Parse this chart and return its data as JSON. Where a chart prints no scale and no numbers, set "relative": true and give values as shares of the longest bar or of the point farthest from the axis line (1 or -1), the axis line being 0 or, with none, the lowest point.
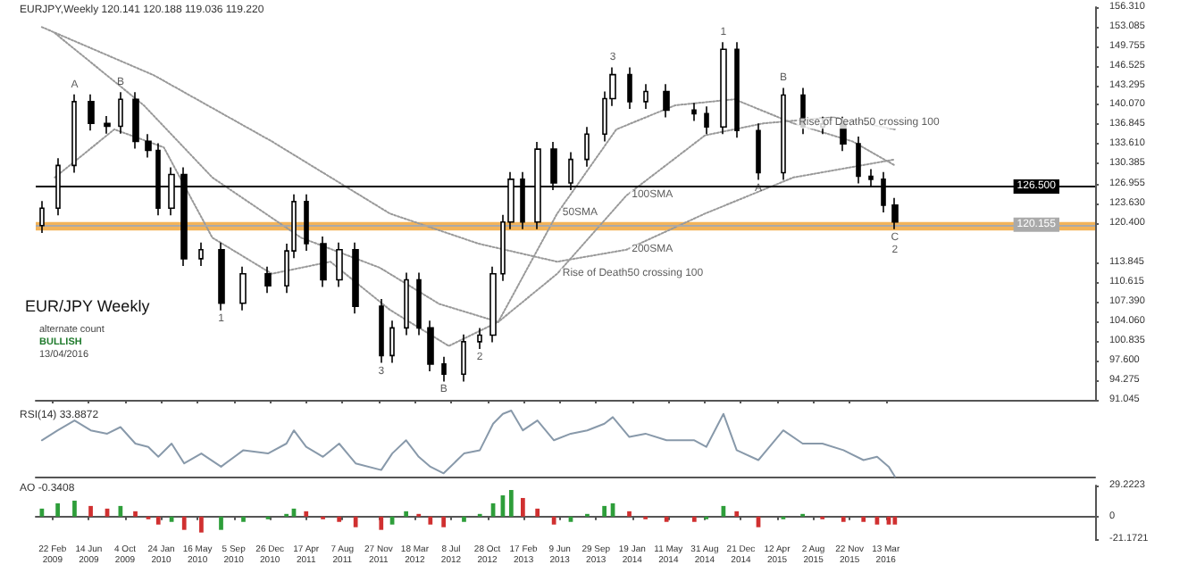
{
  "chart_data": [
    {
      "type": "candlestick",
      "title": "EURJPY,Weekly 120.141 120.188 119.036 119.220",
      "x": [
        "2009-01-20",
        "2009-03-10",
        "2009-05-01",
        "2009-06-20",
        "2009-08-10",
        "2009-09-20",
        "2009-11-05",
        "2009-12-15",
        "2010-01-15",
        "2010-02-25",
        "2010-04-05",
        "2010-05-28",
        "2010-07-28",
        "2010-10-05",
        "2010-12-20",
        "2011-02-15",
        "2011-03-10",
        "2011-04-17",
        "2011-06-08",
        "2011-07-28",
        "2011-09-17",
        "2011-12-05",
        "2012-01-08",
        "2012-02-20",
        "2012-03-30",
        "2012-05-05",
        "2012-06-15",
        "2012-08-17",
        "2012-10-05",
        "2012-11-15",
        "2012-12-15",
        "2013-01-10",
        "2013-02-15",
        "2013-04-01",
        "2013-05-22",
        "2013-07-13",
        "2013-09-02",
        "2013-10-25",
        "2013-11-20",
        "2014-01-10",
        "2014-03-01",
        "2014-05-05",
        "2014-07-30",
        "2014-09-05",
        "2014-10-28",
        "2014-12-08",
        "2015-02-13",
        "2015-05-01",
        "2015-06-30",
        "2015-08-30",
        "2015-11-03",
        "2015-12-20",
        "2016-01-28",
        "2016-03-05",
        "2016-04-10"
      ],
      "ohlc": [
        [
          120,
          124.1,
          118.8,
          122.9
        ],
        [
          122.9,
          131.2,
          121.7,
          130
        ],
        [
          130,
          141.8,
          128.8,
          140.6
        ],
        [
          140.6,
          141.8,
          135.8,
          137
        ],
        [
          137,
          138.2,
          135.3,
          136.5
        ],
        [
          136.5,
          142.2,
          135.3,
          141
        ],
        [
          141,
          142.2,
          132.8,
          134
        ],
        [
          134,
          135.2,
          131.3,
          132.5
        ],
        [
          132.5,
          133.7,
          121.7,
          122.9
        ],
        [
          122.9,
          129.7,
          121.7,
          128.5
        ],
        [
          128.5,
          129.7,
          113.3,
          114.5
        ],
        [
          114.5,
          117.2,
          113.3,
          116
        ],
        [
          116,
          117.2,
          105.9,
          107.1
        ],
        [
          107.1,
          113.2,
          105.9,
          112
        ],
        [
          112,
          113.2,
          108.8,
          110
        ],
        [
          110,
          117,
          108.8,
          115.8
        ],
        [
          115.8,
          125.2,
          114.6,
          124
        ],
        [
          124,
          125.2,
          115.8,
          117
        ],
        [
          117,
          118.2,
          109.8,
          111
        ],
        [
          111,
          117.2,
          109.8,
          116
        ],
        [
          116,
          117.2,
          105.4,
          106.6
        ],
        [
          106.6,
          107.8,
          97.2,
          98.4
        ],
        [
          98.4,
          104.2,
          97.2,
          103
        ],
        [
          103,
          112.2,
          101.8,
          111
        ],
        [
          111,
          112.2,
          101.8,
          103
        ],
        [
          103,
          104.2,
          95.8,
          97
        ],
        [
          97,
          98.2,
          94.1,
          95.3
        ],
        [
          95.3,
          101.9,
          94.1,
          100.7
        ],
        [
          100.7,
          103,
          99.5,
          101.8
        ],
        [
          101.8,
          113.2,
          100.6,
          112
        ],
        [
          112,
          121.8,
          110.8,
          120.6
        ],
        [
          120.6,
          128.9,
          119.4,
          127.7
        ],
        [
          127.7,
          128.9,
          119.4,
          120.6
        ],
        [
          120.6,
          133.9,
          119.4,
          132.7
        ],
        [
          132.7,
          133.9,
          125.9,
          127.1
        ],
        [
          127.1,
          132.2,
          125.9,
          131
        ],
        [
          131,
          136.4,
          129.8,
          135.2
        ],
        [
          135.2,
          142.3,
          134,
          141.1
        ],
        [
          141.1,
          146.3,
          139.9,
          145.1
        ],
        [
          145.1,
          146.3,
          139.4,
          140.6
        ],
        [
          140.6,
          143.5,
          139.4,
          142.3
        ],
        [
          142.3,
          143.5,
          138,
          139.2
        ],
        [
          139.2,
          140.4,
          137.4,
          138.6
        ],
        [
          138.6,
          139.8,
          135.2,
          136.4
        ],
        [
          136.4,
          150.5,
          135.2,
          149.3
        ],
        [
          149.3,
          150.5,
          134.6,
          135.8
        ],
        [
          135.8,
          137,
          127.6,
          128.8
        ],
        [
          128.8,
          142.9,
          127.6,
          141.7
        ],
        [
          141.7,
          142.9,
          135.2,
          136.4
        ],
        [
          136.4,
          138.1,
          135.2,
          136.9
        ],
        [
          136.9,
          138.1,
          132.4,
          133.6
        ],
        [
          133.6,
          134.8,
          127,
          128.2
        ],
        [
          128.2,
          129.4,
          126.5,
          127.7
        ],
        [
          127.7,
          128.9,
          122.2,
          123.4
        ],
        [
          123.4,
          124.6,
          119.4,
          120.6
        ]
      ],
      "series": [
        {
          "type": "line",
          "color": "#999999",
          "line_style": "dotted",
          "x": [
            "2009-03-01",
            "2009-09-01",
            "2010-02-01",
            "2010-07-01",
            "2011-01-01",
            "2011-07-01",
            "2012-01-01",
            "2012-07-01",
            "2012-12-01",
            "2013-06-01",
            "2013-12-01",
            "2014-06-01",
            "2014-12-01",
            "2015-06-01",
            "2015-12-01",
            "2016-04-10"
          ],
          "values": [
            128,
            136,
            133,
            118,
            112,
            114,
            106,
            100,
            104,
            122,
            136,
            140,
            141,
            137,
            134,
            130
          ]
        },
        {
          "type": "line",
          "color": "#999999",
          "line_style": "dotted",
          "x": [
            "2009-03-01",
            "2009-12-01",
            "2010-07-01",
            "2011-04-01",
            "2011-12-01",
            "2012-06-01",
            "2012-12-01",
            "2013-06-01",
            "2014-01-01",
            "2014-09-01",
            "2015-03-01",
            "2015-10-01",
            "2016-04-10"
          ],
          "values": [
            152,
            140,
            128,
            118,
            113,
            107,
            104,
            112,
            125,
            135,
            137,
            138,
            136
          ]
        },
        {
          "type": "line",
          "color": "#999999",
          "line_style": "dotted",
          "x": [
            "2009-01-20",
            "2010-01-01",
            "2011-01-01",
            "2012-01-01",
            "2012-10-01",
            "2013-06-01",
            "2014-01-01",
            "2014-09-01",
            "2015-06-01",
            "2016-04-10"
          ],
          "values": [
            153,
            145,
            134,
            122,
            117,
            114,
            116,
            122,
            128,
            131
          ]
        }
      ],
      "xlim": [
        "2009-01-01",
        "2017-12-20"
      ],
      "xticks": [
        {
          "value": "2009-02-22",
          "label": null
        },
        {
          "value": "2009-06-14",
          "label": null
        },
        {
          "value": "2009-10-04",
          "label": null
        },
        {
          "value": "2010-01-24",
          "label": null
        },
        {
          "value": "2010-05-16",
          "label": null
        },
        {
          "value": "2010-09-05",
          "label": null
        },
        {
          "value": "2010-12-26",
          "label": null
        },
        {
          "value": "2011-04-17",
          "label": null
        },
        {
          "value": "2011-08-07",
          "label": null
        },
        {
          "value": "2011-11-27",
          "label": null
        },
        {
          "value": "2012-03-18",
          "label": null
        },
        {
          "value": "2012-07-08",
          "label": null
        },
        {
          "value": "2012-10-28",
          "label": null
        },
        {
          "value": "2013-02-17",
          "label": null
        },
        {
          "value": "2013-06-09",
          "label": null
        },
        {
          "value": "2013-09-29",
          "label": null
        },
        {
          "value": "2014-01-19",
          "label": null
        },
        {
          "value": "2014-05-11",
          "label": null
        },
        {
          "value": "2014-08-31",
          "label": null
        },
        {
          "value": "2014-12-21",
          "label": null
        },
        {
          "value": "2015-04-12",
          "label": null
        },
        {
          "value": "2015-08-02",
          "label": null
        },
        {
          "value": "2015-11-22",
          "label": null
        },
        {
          "value": "2016-03-13",
          "label": null
        }
      ],
      "ylim": [
        91.045,
        156.31
      ],
      "yticks": [
        91.045,
        94.275,
        {
          "value": 97.6,
          "label": "97.600"
        },
        100.835,
        {
          "value": 104.06,
          "label": "104.060"
        },
        {
          "value": 107.39,
          "label": "107.390"
        },
        110.615,
        113.845,
        {
          "value": 120.4,
          "label": "120.400"
        },
        {
          "value": 123.63,
          "label": "123.630"
        },
        126.955,
        130.385,
        {
          "value": 133.61,
          "label": "133.610"
        },
        136.845,
        {
          "value": 140.07,
          "label": "140.070"
        },
        143.295,
        146.525,
        149.755,
        153.085,
        {
          "value": 156.31,
          "label": "156.310"
        }
      ],
      "tick_labels": "y",
      "ref_lines": [
        {
          "axis": "y",
          "value": 126.5,
          "label": "126.500",
          "color": "#000000"
        },
        {
          "axis": "y",
          "value": 120.155,
          "label": "120.155",
          "color": "#aaaaaa"
        }
      ],
      "bands": [
        {
          "axis": "y",
          "from": 119.2,
          "to": 120.6,
          "color": "#f0a030"
        }
      ],
      "annotations": [
        "EUR/JPY Weekly",
        "alternate count",
        "BULLISH",
        "13/04/2016",
        {
          "text": "A",
          "x": "2009-05-01",
          "y": 141.8
        },
        {
          "text": "B",
          "x": "2009-09-20",
          "y": 142.2
        },
        {
          "text": "1",
          "x": "2010-07-28",
          "y": 105.9
        },
        {
          "text": "3",
          "x": "2011-12-05",
          "y": 97.2
        },
        {
          "text": "B",
          "x": "2012-06-15",
          "y": 94.1
        },
        {
          "text": "2",
          "x": "2012-10-05",
          "y": 99.5
        },
        {
          "text": "3",
          "x": "2013-11-20",
          "y": 146.3
        },
        {
          "text": "1",
          "x": "2014-10-28",
          "y": 150.5
        },
        {
          "text": "A",
          "x": "2015-02-13",
          "y": 127.6
        },
        {
          "text": "B",
          "x": "2015-05-01",
          "y": 142.9
        },
        {
          "text": "C",
          "x": "2016-04-10",
          "y": 119.4
        },
        {
          "text": "2",
          "x": "2016-04-10",
          "y": 119.4
        },
        {
          "text": "50SMA",
          "x": "2013-06-01",
          "y": 122
        },
        {
          "text": "100SMA",
          "x": "2014-01-01",
          "y": 125
        },
        {
          "text": "200SMA",
          "x": "2014-01-01",
          "y": 116
        },
        {
          "text": "Rise of Death50 crossing 100",
          "x": "2015-06-01",
          "y": 137
        },
        {
          "text": "Rise of Death50 crossing 100",
          "x": "2013-06-01",
          "y": 112
        }
      ]
    },
    {
      "type": "line",
      "title": "RSI(14) 33.8872",
      "relative": true,
      "color": "#8899aa",
      "tick_labels": false,
      "x": [
        "2009-01-20",
        "2009-03-10",
        "2009-05-01",
        "2009-06-20",
        "2009-08-10",
        "2009-09-20",
        "2009-11-05",
        "2009-12-15",
        "2010-01-15",
        "2010-02-25",
        "2010-04-05",
        "2010-05-28",
        "2010-07-28",
        "2010-10-05",
        "2010-12-20",
        "2011-02-15",
        "2011-03-10",
        "2011-04-17",
        "2011-06-08",
        "2011-07-28",
        "2011-09-17",
        "2011-12-05",
        "2012-01-08",
        "2012-02-20",
        "2012-03-30",
        "2012-05-05",
        "2012-06-15",
        "2012-08-17",
        "2012-10-05",
        "2012-11-15",
        "2012-12-15",
        "2013-01-10",
        "2013-02-15",
        "2013-04-01",
        "2013-05-22",
        "2013-07-13",
        "2013-09-02",
        "2013-10-25",
        "2013-11-20",
        "2014-01-10",
        "2014-03-01",
        "2014-05-05",
        "2014-07-30",
        "2014-09-05",
        "2014-10-28",
        "2014-12-08",
        "2015-02-13",
        "2015-05-01",
        "2015-06-30",
        "2015-08-30",
        "2015-11-03",
        "2016-01-04",
        "2016-02-15",
        "2016-03-22",
        "2016-04-10"
      ],
      "values": [
        0.55,
        0.7,
        0.85,
        0.7,
        0.65,
        0.75,
        0.5,
        0.45,
        0.3,
        0.5,
        0.2,
        0.35,
        0.15,
        0.4,
        0.35,
        0.5,
        0.7,
        0.45,
        0.3,
        0.5,
        0.2,
        0.1,
        0.35,
        0.55,
        0.3,
        0.15,
        0.05,
        0.35,
        0.4,
        0.8,
        0.95,
        1.0,
        0.7,
        0.85,
        0.55,
        0.65,
        0.7,
        0.8,
        0.9,
        0.6,
        0.65,
        0.55,
        0.55,
        0.45,
        0.95,
        0.4,
        0.25,
        0.7,
        0.5,
        0.5,
        0.4,
        0.25,
        0.3,
        0.15,
        0
      ],
      "xlim": [
        "2009-01-01",
        "2017-12-20"
      ]
    },
    {
      "type": "bar",
      "title": "AO -0.3408",
      "x": [
        "2009-01-20",
        "2009-03-10",
        "2009-05-01",
        "2009-06-20",
        "2009-08-10",
        "2009-09-20",
        "2009-11-05",
        "2009-12-15",
        "2010-01-15",
        "2010-02-25",
        "2010-04-05",
        "2010-05-28",
        "2010-07-28",
        "2010-10-05",
        "2010-12-20",
        "2011-02-15",
        "2011-03-10",
        "2011-04-17",
        "2011-06-08",
        "2011-07-28",
        "2011-09-17",
        "2011-12-05",
        "2012-01-08",
        "2012-02-20",
        "2012-03-30",
        "2012-05-05",
        "2012-06-15",
        "2012-08-17",
        "2012-10-05",
        "2012-11-15",
        "2012-12-15",
        "2013-01-10",
        "2013-02-15",
        "2013-04-01",
        "2013-05-22",
        "2013-07-13",
        "2013-09-02",
        "2013-10-25",
        "2013-11-20",
        "2014-01-10",
        "2014-03-01",
        "2014-05-05",
        "2014-07-30",
        "2014-09-05",
        "2014-10-28",
        "2014-12-08",
        "2015-02-13",
        "2015-05-01",
        "2015-06-30",
        "2015-08-30",
        "2015-11-03",
        "2016-01-04",
        "2016-02-15",
        "2016-03-22",
        "2016-04-10"
      ],
      "values": [
        7.5,
        12.5,
        15,
        10,
        7.5,
        10,
        5,
        -2.5,
        -7.5,
        -5,
        -12.5,
        -15,
        -12.5,
        -5,
        -2.5,
        2.5,
        7.5,
        5,
        -2.5,
        -5,
        -10,
        -12.5,
        -7.5,
        5,
        2.5,
        -7.5,
        -10,
        -5,
        2.5,
        12.5,
        20,
        25,
        17.5,
        7.5,
        -7.5,
        -5,
        2.5,
        10,
        12.5,
        5,
        -2.5,
        -5,
        -5,
        -2.5,
        10,
        5,
        -10,
        -2.5,
        2.5,
        -2.5,
        -5,
        -5,
        -7.5,
        -7.5,
        -7.5
      ],
      "colors": [
        "#2e9e3a",
        "#2e9e3a",
        "#2e9e3a",
        "#d03030",
        "#d03030",
        "#2e9e3a",
        "#d03030",
        "#d03030",
        "#d03030",
        "#2e9e3a",
        "#d03030",
        "#d03030",
        "#2e9e3a",
        "#2e9e3a",
        "#2e9e3a",
        "#2e9e3a",
        "#2e9e3a",
        "#d03030",
        "#d03030",
        "#d03030",
        "#d03030",
        "#d03030",
        "#2e9e3a",
        "#2e9e3a",
        "#d03030",
        "#d03030",
        "#d03030",
        "#2e9e3a",
        "#2e9e3a",
        "#2e9e3a",
        "#2e9e3a",
        "#2e9e3a",
        "#d03030",
        "#d03030",
        "#d03030",
        "#2e9e3a",
        "#2e9e3a",
        "#2e9e3a",
        "#2e9e3a",
        "#d03030",
        "#d03030",
        "#d03030",
        "#d03030",
        "#2e9e3a",
        "#2e9e3a",
        "#d03030",
        "#d03030",
        "#2e9e3a",
        "#2e9e3a",
        "#d03030",
        "#d03030",
        "#d03030",
        "#d03030",
        "#d03030",
        "#d03030"
      ],
      "xlim": [
        "2009-01-01",
        "2017-12-20"
      ],
      "xticks": [
        {
          "value": "2009-02-22",
          "label": "22 Feb 2009"
        },
        {
          "value": "2009-06-14",
          "label": "14 Jun 2009"
        },
        {
          "value": "2009-10-04",
          "label": "4 Oct 2009"
        },
        {
          "value": "2010-01-24",
          "label": "24 Jan 2010"
        },
        {
          "value": "2010-05-16",
          "label": "16 May 2010"
        },
        {
          "value": "2010-09-05",
          "label": "5 Sep 2010"
        },
        {
          "value": "2010-12-26",
          "label": "26 Dec 2010"
        },
        {
          "value": "2011-04-17",
          "label": "17 Apr 2011"
        },
        {
          "value": "2011-08-07",
          "label": "7 Aug 2011"
        },
        {
          "value": "2011-11-27",
          "label": "27 Nov 2011"
        },
        {
          "value": "2012-03-18",
          "label": "18 Mar 2012"
        },
        {
          "value": "2012-07-08",
          "label": "8 Jul 2012"
        },
        {
          "value": "2012-10-28",
          "label": "28 Oct 2012"
        },
        {
          "value": "2013-02-17",
          "label": "17 Feb 2013"
        },
        {
          "value": "2013-06-09",
          "label": "9 Jun 2013"
        },
        {
          "value": "2013-09-29",
          "label": "29 Sep 2013"
        },
        {
          "value": "2014-01-19",
          "label": "19 Jan 2014"
        },
        {
          "value": "2014-05-11",
          "label": "11 May 2014"
        },
        {
          "value": "2014-08-31",
          "label": "31 Aug 2014"
        },
        {
          "value": "2014-12-21",
          "label": "21 Dec 2014"
        },
        {
          "value": "2015-04-12",
          "label": "12 Apr 2015"
        },
        {
          "value": "2015-08-02",
          "label": "2 Aug 2015"
        },
        {
          "value": "2015-11-22",
          "label": "22 Nov 2015"
        },
        {
          "value": "2016-03-13",
          "label": "13 Mar 2016"
        }
      ],
      "ylim": [
        -21.1721,
        29.2223
      ],
      "yticks": [
        -21.1721,
        0,
        29.2223
      ]
    }
  ]
}
